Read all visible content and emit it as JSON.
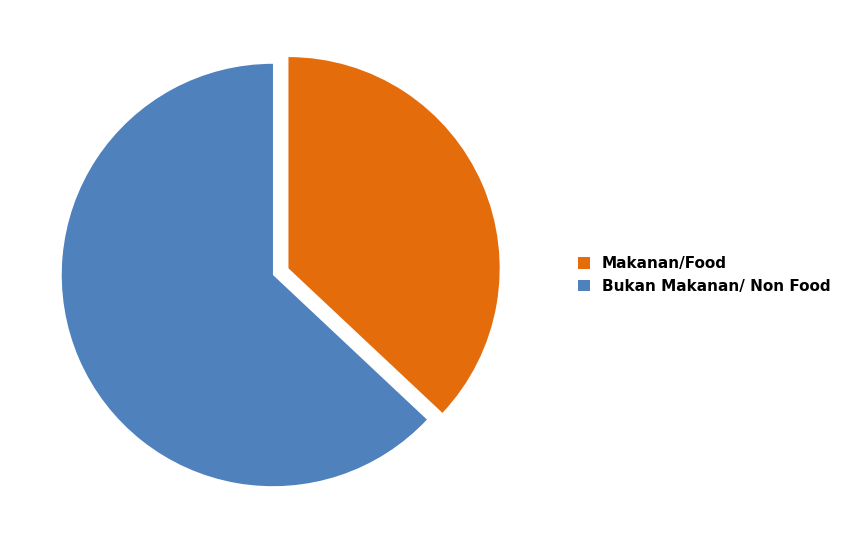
{
  "chart_data": {
    "type": "pie",
    "categories": [
      "Makanan/Food",
      "Bukan Makanan/ Non Food"
    ],
    "values": [
      37,
      63
    ],
    "colors": [
      "#e46c0a",
      "#4f81bd"
    ],
    "legend": "right"
  }
}
